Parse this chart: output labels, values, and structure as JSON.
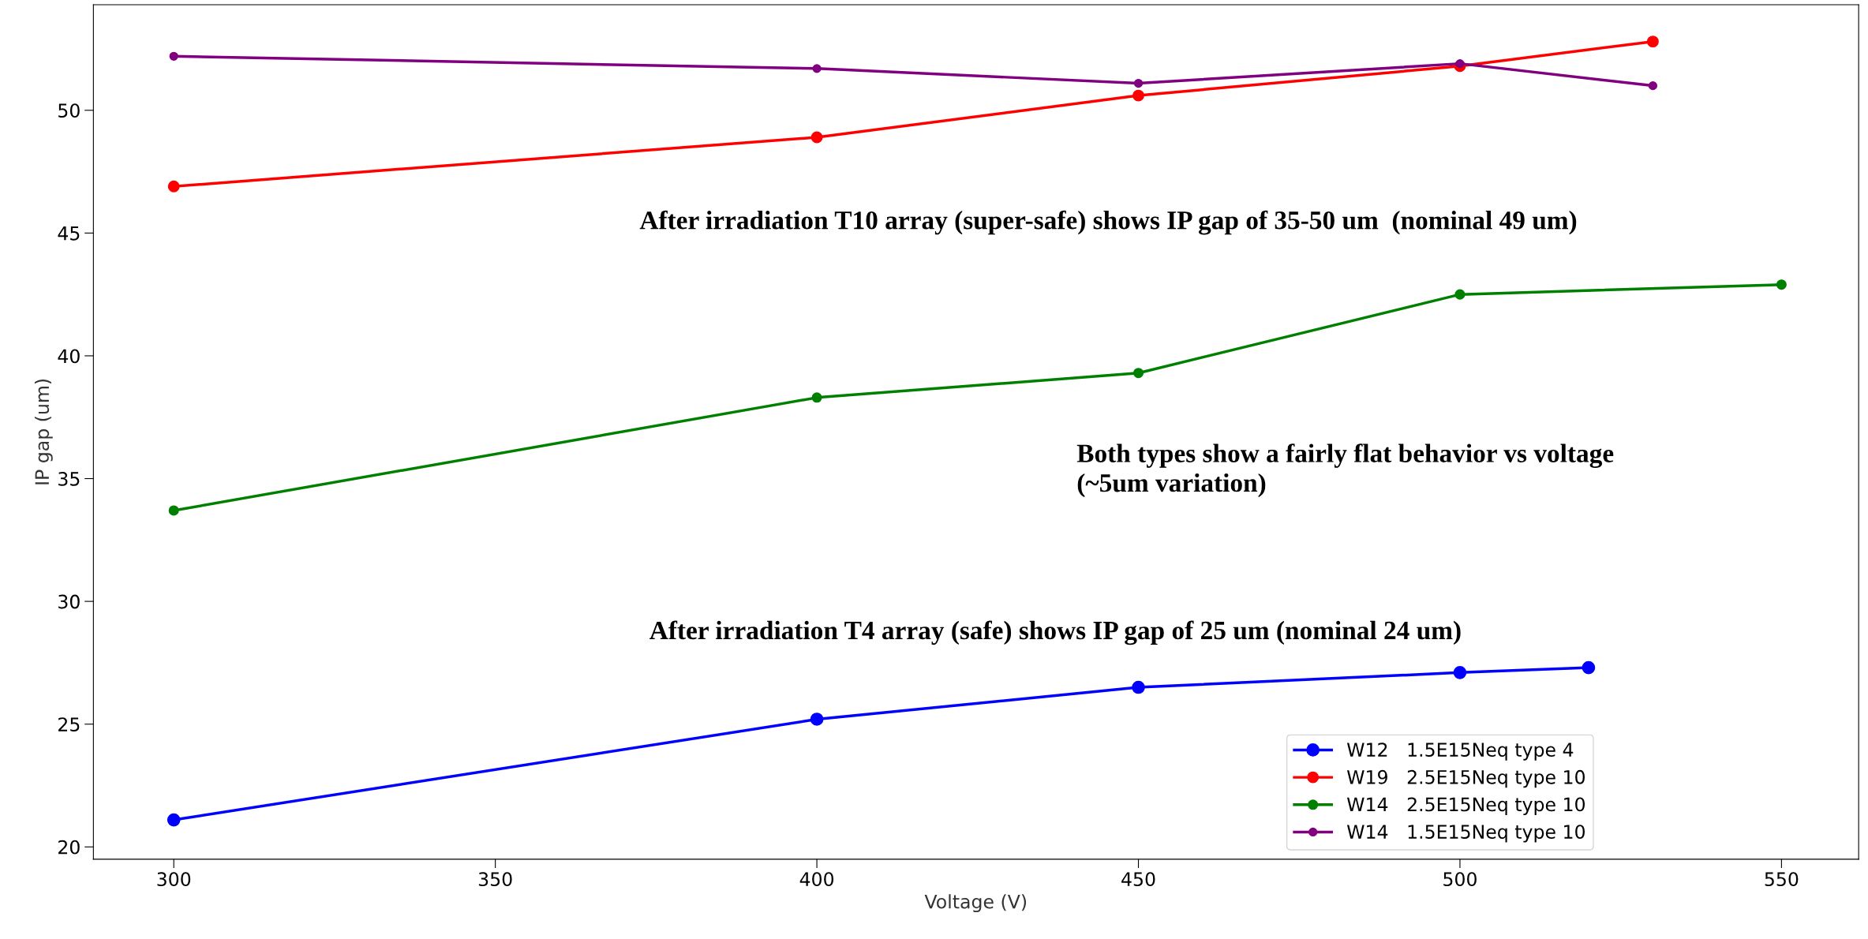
{
  "chart_data": {
    "type": "line",
    "xlabel": "Voltage (V)",
    "ylabel": "IP gap (um)",
    "series": [
      {
        "name": "W12   1.5E15Neq type 4",
        "color": "#0000ff",
        "x": [
          300,
          400,
          450,
          500,
          520
        ],
        "values": [
          21.1,
          25.2,
          26.5,
          27.1,
          27.3
        ]
      },
      {
        "name": "W19   2.5E15Neq type 10",
        "color": "#ff0000",
        "x": [
          300,
          400,
          450,
          500,
          530
        ],
        "values": [
          46.9,
          48.9,
          50.6,
          51.8,
          52.8
        ]
      },
      {
        "name": "W14   2.5E15Neq type 10",
        "color": "#008000",
        "x": [
          300,
          400,
          450,
          500,
          550
        ],
        "values": [
          33.7,
          38.3,
          39.3,
          42.5,
          42.9
        ]
      },
      {
        "name": "W14   1.5E15Neq type 10",
        "color": "#800080",
        "x": [
          300,
          400,
          450,
          500,
          530
        ],
        "values": [
          52.2,
          51.7,
          51.1,
          51.9,
          51.0
        ]
      }
    ],
    "xlim": [
      287.5,
      562
    ],
    "xticks": [
      300,
      350,
      400,
      450,
      500,
      550
    ],
    "ylim": [
      19.5,
      54.3
    ],
    "yticks": [
      20,
      25,
      30,
      35,
      40,
      45,
      50
    ],
    "annotations": [
      "After irradiation T10 array (super-safe) shows IP gap of 35-50 um  (nominal 49 um)",
      "Both types show a fairly flat behavior vs voltage\n(~5um variation)",
      "After irradiation T4 array (safe) shows IP gap of 25 um (nominal 24 um)"
    ],
    "marker": "circle",
    "line_style": "solid",
    "legend": "bottom right",
    "grid": false
  }
}
